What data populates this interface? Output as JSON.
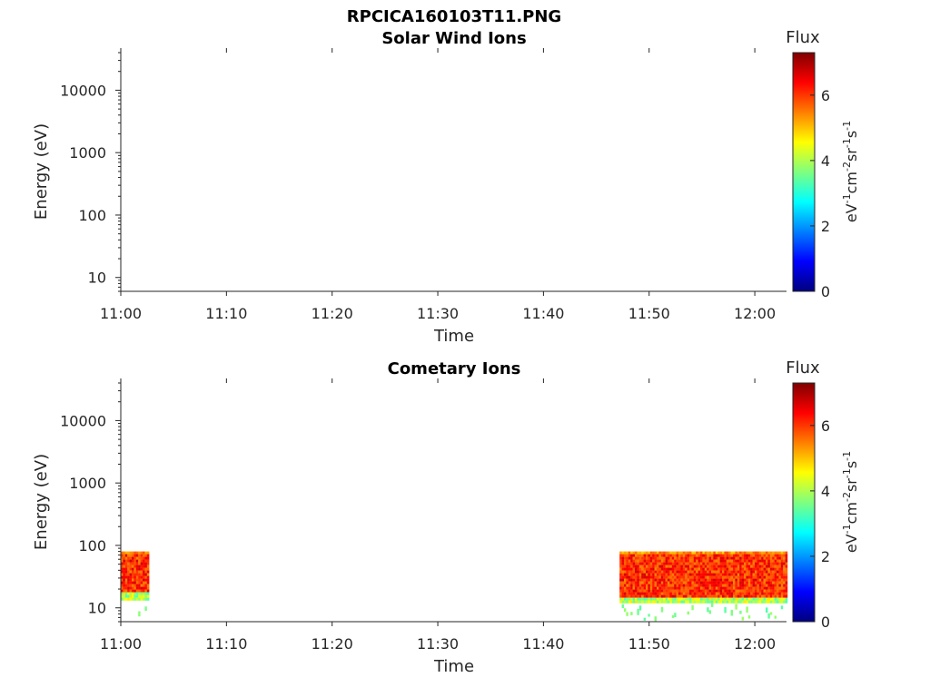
{
  "figure_title": "RPCICA160103T11.PNG",
  "colorbar_gradient": [
    "#00007f",
    "#0000ff",
    "#007fff",
    "#00ffff",
    "#7fff7f",
    "#ffff00",
    "#ff7f00",
    "#ff0000",
    "#7f0000"
  ],
  "chart_data": [
    {
      "type": "heatmap",
      "title": "Solar Wind Ions",
      "xlabel": "Time",
      "ylabel": "Energy (eV)",
      "yscale": "log",
      "xlim": [
        "11:00",
        "12:03"
      ],
      "ylim": [
        6,
        40000
      ],
      "x_tick_labels": [
        "11:00",
        "11:10",
        "11:20",
        "11:30",
        "11:40",
        "11:50",
        "12:00"
      ],
      "y_tick_labels": [
        "10",
        "100",
        "1000",
        "10000"
      ],
      "colorbar": {
        "label": "Flux",
        "unit_label": "eV-1cm-2sr-1s-1",
        "range": [
          0,
          7.3
        ],
        "tick_labels": [
          "0",
          "2",
          "4",
          "6"
        ]
      },
      "regions": []
    },
    {
      "type": "heatmap",
      "title": "Cometary Ions",
      "xlabel": "Time",
      "ylabel": "Energy (eV)",
      "yscale": "log",
      "xlim": [
        "11:00",
        "12:03"
      ],
      "ylim": [
        6,
        40000
      ],
      "x_tick_labels": [
        "11:00",
        "11:10",
        "11:20",
        "11:30",
        "11:40",
        "11:50",
        "12:00"
      ],
      "y_tick_labels": [
        "10",
        "100",
        "1000",
        "10000"
      ],
      "colorbar": {
        "label": "Flux",
        "unit_label": "eV-1cm-2sr-1s-1",
        "range": [
          0,
          7.3
        ],
        "tick_labels": [
          "0",
          "2",
          "4",
          "6"
        ]
      },
      "regions": [
        {
          "t_start": "11:00",
          "t_end": "11:02.6",
          "e_low": 14,
          "e_high": 80,
          "peak_flux": 6.5
        },
        {
          "t_start": "11:47.2",
          "t_end": "12:03",
          "e_low": 12,
          "e_high": 80,
          "peak_flux": 6.6
        }
      ]
    }
  ]
}
